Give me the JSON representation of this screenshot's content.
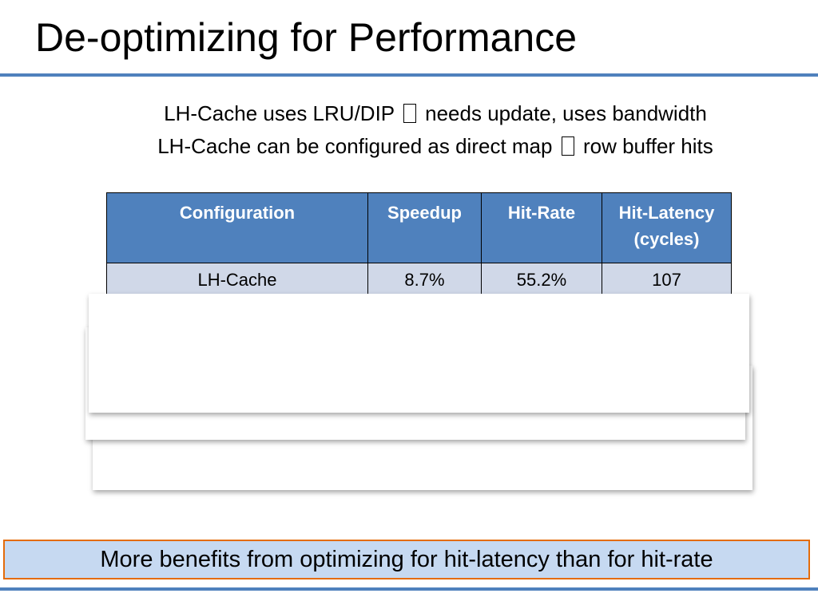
{
  "slide": {
    "title": "De-optimizing for Performance",
    "bullets": [
      {
        "before": "LH-Cache uses LRU/DIP",
        "after": "needs update, uses bandwidth",
        "glyph": "missing-glyph-box"
      },
      {
        "before": "LH-Cache can be configured as direct map",
        "after": "row buffer hits",
        "glyph": "missing-glyph-box"
      }
    ]
  },
  "table": {
    "headers": {
      "configuration": "Configuration",
      "speedup": "Speedup",
      "hit_rate": "Hit-Rate",
      "hit_latency_line1": "Hit-Latency",
      "hit_latency_line2": "(cycles)"
    },
    "rows": [
      {
        "configuration": "LH-Cache",
        "speedup": "8.7%",
        "hit_rate": "55.2%",
        "hit_latency": "107"
      }
    ]
  },
  "callout": {
    "text": "More benefits from optimizing for hit-latency than for hit-rate"
  },
  "colors": {
    "accent_blue": "#4f81bd",
    "row_light": "#d0d8e8",
    "callout_fill": "#c6d9f1",
    "callout_border": "#e46c0a"
  }
}
